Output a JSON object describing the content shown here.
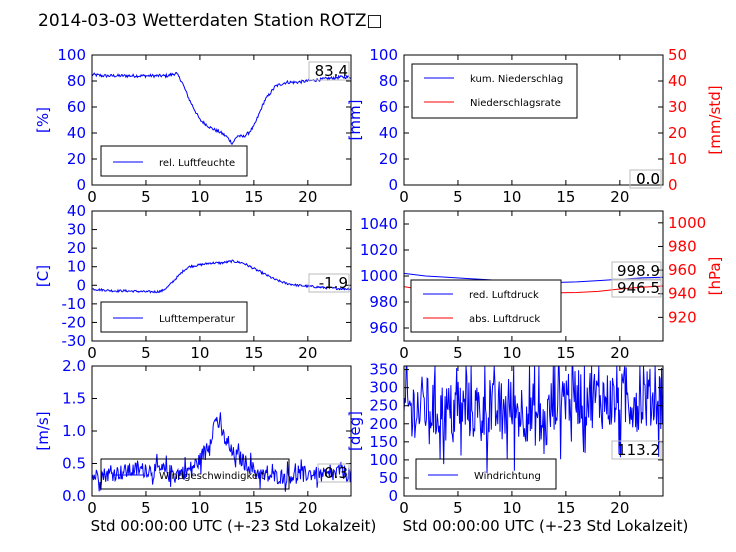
{
  "title": "2014-03-03 Wetterdaten Station ROTZ□",
  "colors": {
    "left": "#0000ff",
    "right": "#ff0000",
    "frame": "#000000"
  },
  "chart_data": [
    {
      "type": "line",
      "ylabel_left": "[%]",
      "xlim": [
        0,
        24
      ],
      "ylim_left": [
        0,
        100
      ],
      "xticks": [
        0,
        5,
        10,
        15,
        20
      ],
      "yticks_left": [
        0,
        20,
        40,
        60,
        80,
        100
      ],
      "annotation": "83.4",
      "legend_loc": "lower-left",
      "series": [
        {
          "name": "rel. Luftfeuchte",
          "axis": "left",
          "color": "#0000ff",
          "noise": 1.2,
          "x": [
            0,
            1,
            2,
            3,
            4,
            5,
            6,
            7,
            7.8,
            8.3,
            9,
            10,
            11,
            12,
            12.5,
            13,
            13.5,
            14,
            14.5,
            15,
            15.5,
            16,
            17,
            18,
            19,
            20,
            21,
            22,
            23,
            24
          ],
          "y": [
            85,
            84,
            84,
            84,
            84,
            84,
            84,
            84,
            86,
            80,
            66,
            50,
            44,
            40,
            37,
            32,
            38,
            37,
            40,
            45,
            55,
            65,
            76,
            79,
            79,
            80,
            81,
            82,
            83,
            83
          ]
        }
      ]
    },
    {
      "type": "line",
      "ylabel_left": "[mm]",
      "ylabel_right": "[mm/std]",
      "xlim": [
        0,
        24
      ],
      "ylim_left": [
        0,
        100
      ],
      "ylim_right": [
        0,
        50
      ],
      "xticks": [
        0,
        5,
        10,
        15,
        20
      ],
      "yticks_left": [
        0,
        20,
        40,
        60,
        80,
        100
      ],
      "yticks_right": [
        0,
        10,
        20,
        30,
        40,
        50
      ],
      "annotation": "0.0",
      "annotation2": "0.0",
      "legend_loc": "upper-left",
      "series": [
        {
          "name": "kum. Niederschlag",
          "axis": "left",
          "color": "#0000ff",
          "noise": 0,
          "x": [
            0,
            24
          ],
          "y": [
            0,
            0
          ]
        },
        {
          "name": "Niederschlagsrate",
          "axis": "right",
          "color": "#ff0000",
          "noise": 0,
          "x": [
            0,
            24
          ],
          "y": [
            0,
            0
          ]
        }
      ]
    },
    {
      "type": "line",
      "ylabel_left": "[C]",
      "xlim": [
        0,
        24
      ],
      "ylim_left": [
        -30,
        40
      ],
      "xticks": [
        0,
        5,
        10,
        15,
        20
      ],
      "yticks_left": [
        -30,
        -20,
        -10,
        0,
        10,
        20,
        30,
        40
      ],
      "annotation": "-1.9",
      "legend_loc": "lower-left",
      "series": [
        {
          "name": "Lufttemperatur",
          "axis": "left",
          "color": "#0000ff",
          "noise": 0.6,
          "x": [
            0,
            1,
            2,
            3,
            4,
            5,
            6,
            6.5,
            7,
            7.5,
            8,
            8.5,
            9,
            10,
            11,
            12,
            13,
            14,
            15,
            16,
            17,
            18,
            19,
            20,
            21,
            22,
            23,
            24
          ],
          "y": [
            -2,
            -2.5,
            -3,
            -3,
            -3.2,
            -3.5,
            -3.5,
            -3,
            -1,
            2,
            5,
            8,
            10,
            11,
            12,
            12,
            13,
            12,
            9,
            6,
            3,
            1,
            0,
            -0.5,
            -1,
            -1.5,
            -1.8,
            -2
          ]
        }
      ]
    },
    {
      "type": "line",
      "ylabel_left": "",
      "ylabel_right": "[hPa]",
      "xlim": [
        0,
        24
      ],
      "ylim_left": [
        950,
        1050
      ],
      "ylim_right": [
        900,
        1010
      ],
      "xticks": [
        0,
        5,
        10,
        15,
        20
      ],
      "yticks_left": [
        960,
        980,
        1000,
        1020,
        1040
      ],
      "yticks_right": [
        920,
        940,
        960,
        980,
        1000
      ],
      "annotation": "998.9",
      "annotation2": "946.5",
      "legend_loc": "lower-left",
      "series": [
        {
          "name": "red. Luftdruck",
          "axis": "left",
          "color": "#0000ff",
          "noise": 0,
          "x": [
            0,
            2,
            4,
            6,
            8,
            10,
            12,
            14,
            16,
            18,
            20,
            22,
            24
          ],
          "y": [
            1002,
            1000,
            999,
            998,
            997,
            996,
            995,
            995,
            995.5,
            996.5,
            997.5,
            998.5,
            999
          ]
        },
        {
          "name": "abs. Luftdruck",
          "axis": "right",
          "color": "#ff0000",
          "noise": 0,
          "x": [
            0,
            2,
            4,
            6,
            8,
            10,
            12,
            14,
            16,
            18,
            20,
            22,
            24
          ],
          "y": [
            946,
            943,
            942,
            941.5,
            941,
            941,
            940.8,
            940.7,
            941,
            942,
            944,
            945.5,
            946.5
          ]
        }
      ]
    },
    {
      "type": "line",
      "ylabel_left": "[m/s]",
      "xlabel": "Std 00:00:00 UTC (+-23 Std Lokalzeit)",
      "xlim": [
        0,
        24
      ],
      "ylim_left": [
        0,
        2.0
      ],
      "xticks": [
        0,
        5,
        10,
        15,
        20
      ],
      "yticks_left": [
        0.0,
        0.5,
        1.0,
        1.5,
        2.0
      ],
      "yticks_left_labels": [
        "0.0",
        "0.5",
        "1.0",
        "1.5",
        "2.0"
      ],
      "annotation": "0.3",
      "legend_loc": "lower-left",
      "series": [
        {
          "name": "Windgeschwindigkeit",
          "axis": "left",
          "color": "#0000ff",
          "noise": 0.12,
          "spiky": true,
          "x": [
            0,
            2,
            4,
            6,
            8,
            9,
            10,
            11,
            11.5,
            12,
            12.5,
            13,
            14,
            15,
            16,
            18,
            20,
            22,
            23,
            24
          ],
          "y": [
            0.3,
            0.35,
            0.4,
            0.4,
            0.35,
            0.4,
            0.55,
            0.9,
            1.2,
            1.0,
            0.8,
            0.65,
            0.55,
            0.4,
            0.3,
            0.3,
            0.35,
            0.3,
            0.4,
            0.3
          ]
        }
      ]
    },
    {
      "type": "line",
      "ylabel_left": "[deg]",
      "xlabel": "Std 00:00:00 UTC (+-23 Std Lokalzeit)",
      "xlim": [
        0,
        24
      ],
      "ylim_left": [
        0,
        360
      ],
      "xticks": [
        0,
        5,
        10,
        15,
        20
      ],
      "yticks_left": [
        0,
        50,
        100,
        150,
        200,
        250,
        300,
        350
      ],
      "annotation": "113.2",
      "legend_loc": "lower-left",
      "series": [
        {
          "name": "Windrichtung",
          "axis": "left",
          "color": "#0000ff",
          "noise": 85,
          "spiky": true,
          "x": [
            0,
            2,
            4,
            6,
            8,
            10,
            12,
            13,
            14,
            16,
            18,
            20,
            22,
            24
          ],
          "y": [
            240,
            250,
            230,
            240,
            235,
            240,
            230,
            180,
            280,
            280,
            270,
            260,
            270,
            270
          ]
        }
      ]
    }
  ]
}
